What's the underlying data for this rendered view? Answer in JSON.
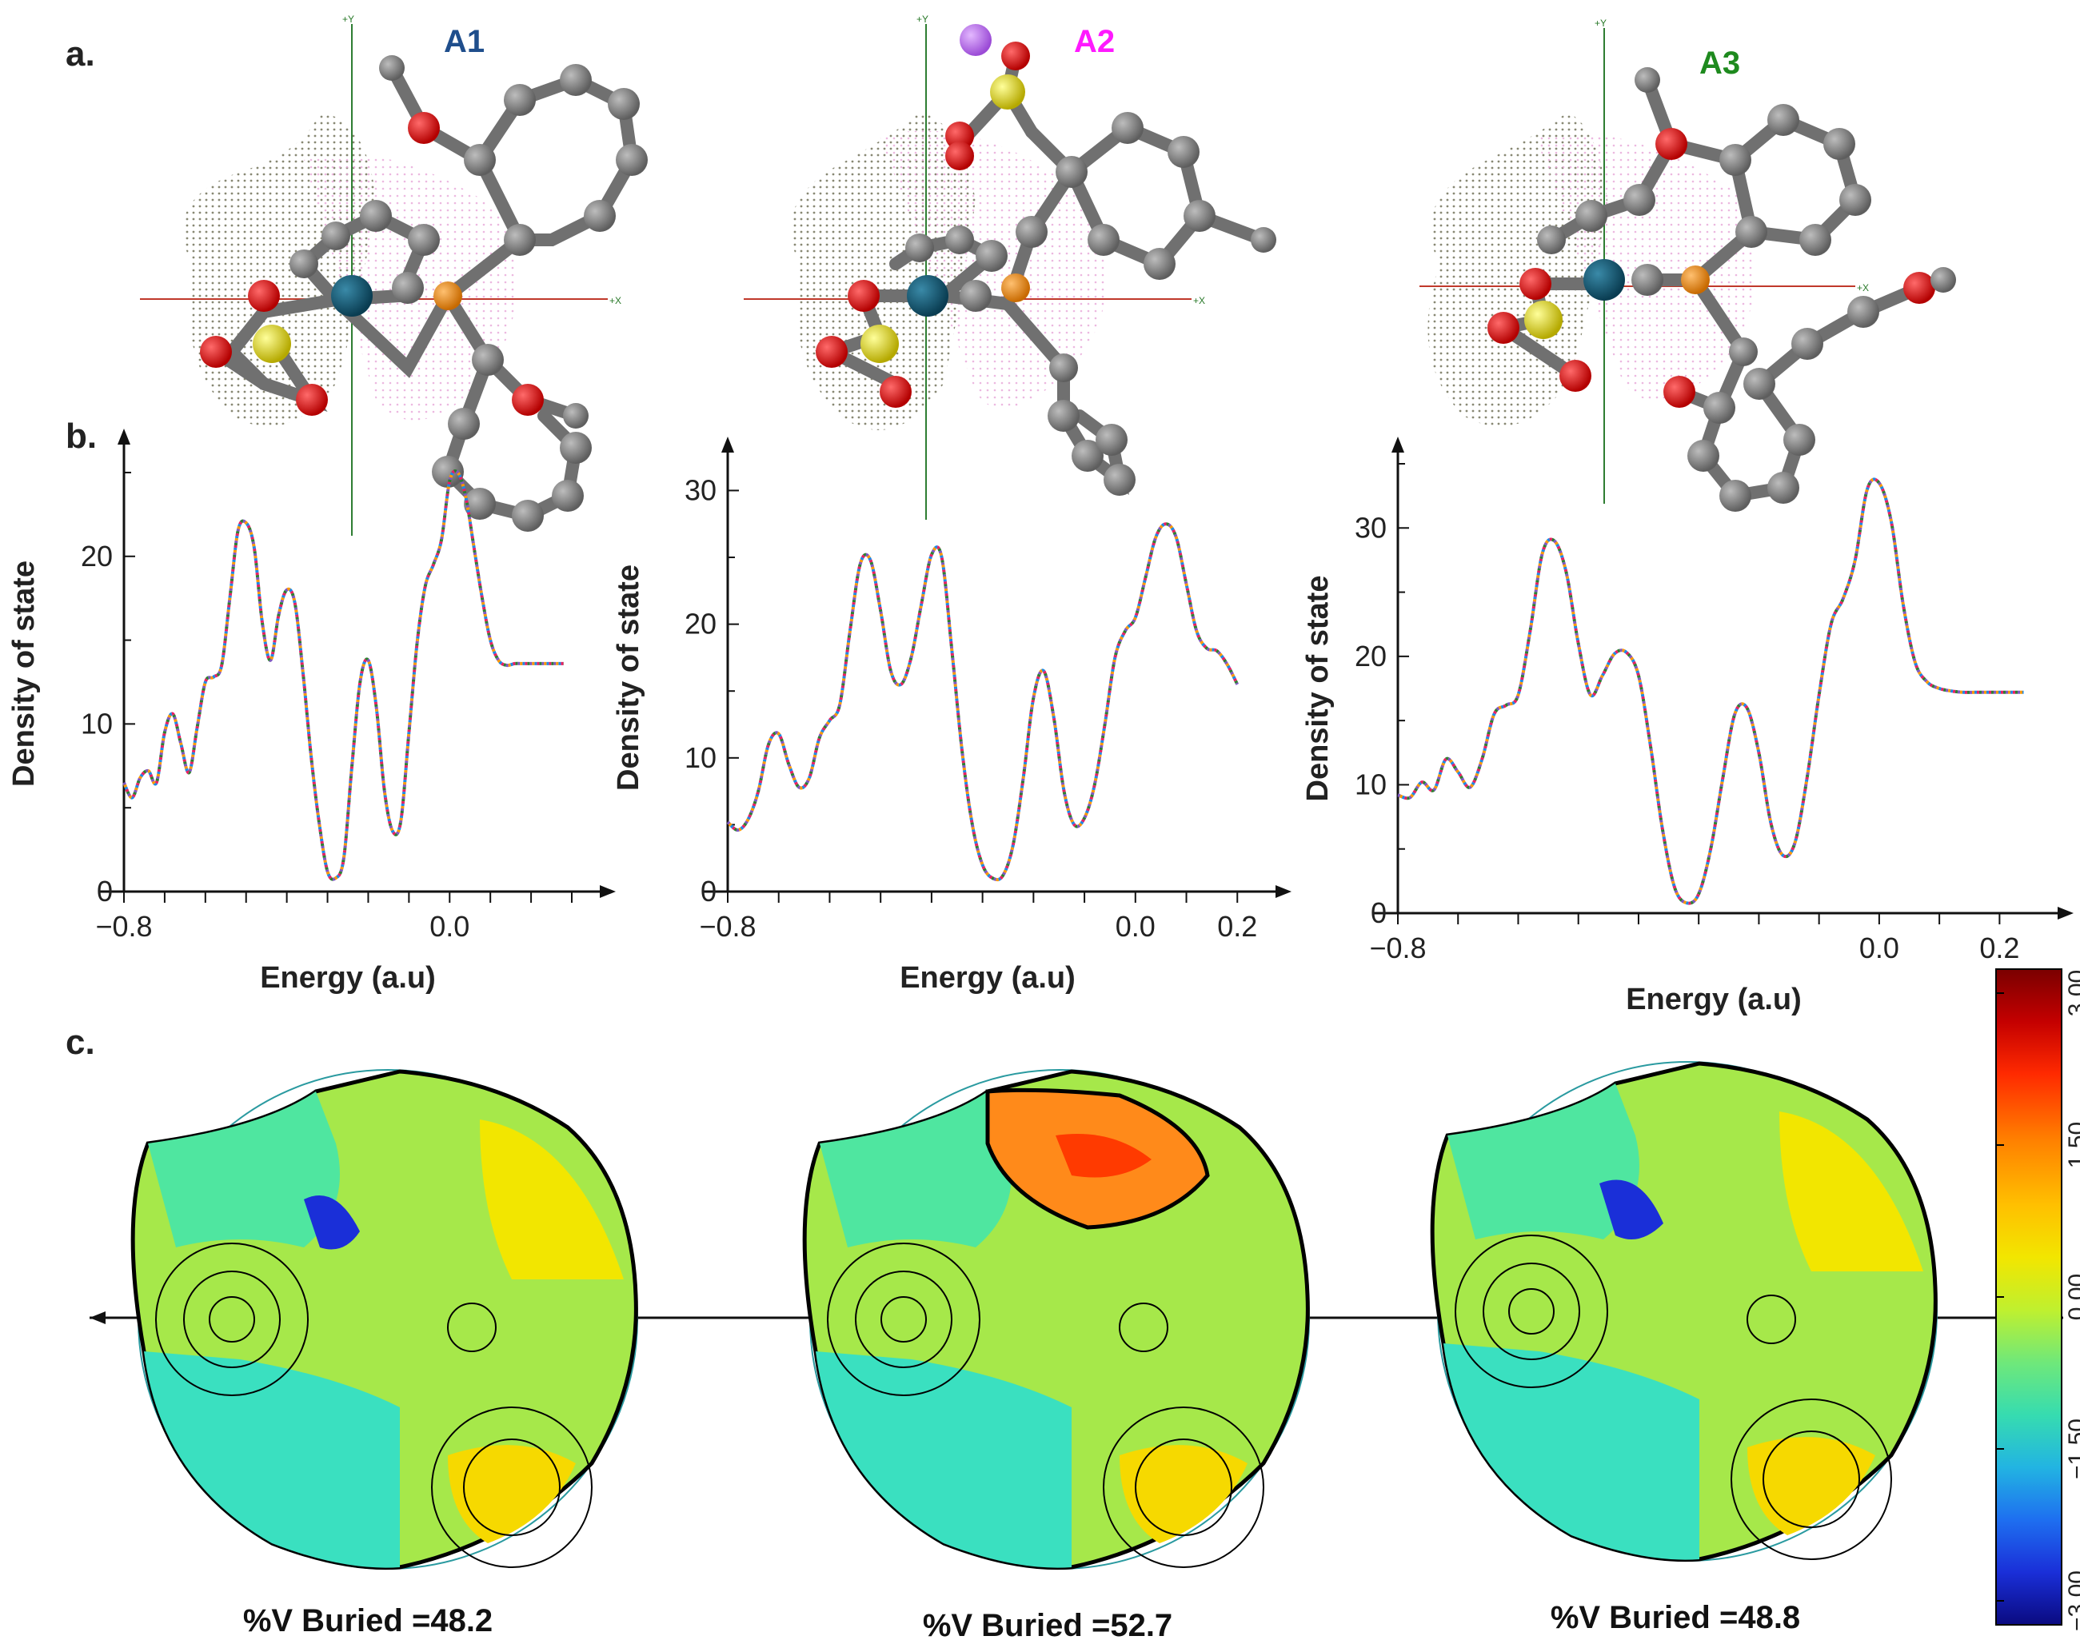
{
  "panel_labels": {
    "a": "a.",
    "b": "b.",
    "c": "c."
  },
  "molecules": [
    {
      "title": "A1",
      "color": "#1f4e8c",
      "x_axis": "+X",
      "y_axis": "+Y"
    },
    {
      "title": "A2",
      "color": "#ff19ff",
      "x_axis": "+X",
      "y_axis": "+Y"
    },
    {
      "title": "A3",
      "color": "#1e8a1e",
      "x_axis": "+X",
      "y_axis": "+Y"
    }
  ],
  "chart_data": [
    {
      "type": "line",
      "panel": "b-A1",
      "xlabel": "Energy (a.u)",
      "ylabel": "Density of state",
      "xlim": [
        -0.8,
        0.3
      ],
      "ylim": [
        0,
        26
      ],
      "xticks": [
        "−0.8",
        "0.0"
      ],
      "yticks": [
        "0",
        "10",
        "20"
      ],
      "x": [
        -0.8,
        -0.78,
        -0.76,
        -0.74,
        -0.72,
        -0.7,
        -0.68,
        -0.66,
        -0.64,
        -0.62,
        -0.6,
        -0.58,
        -0.56,
        -0.54,
        -0.52,
        -0.5,
        -0.48,
        -0.46,
        -0.44,
        -0.42,
        -0.4,
        -0.38,
        -0.36,
        -0.34,
        -0.32,
        -0.3,
        -0.28,
        -0.26,
        -0.24,
        -0.22,
        -0.2,
        -0.18,
        -0.16,
        -0.14,
        -0.12,
        -0.1,
        -0.08,
        -0.06,
        -0.04,
        -0.02,
        0.0,
        0.02,
        0.04,
        0.06,
        0.08,
        0.1,
        0.12,
        0.14,
        0.16,
        0.18,
        0.2,
        0.22,
        0.24,
        0.26,
        0.28
      ],
      "series": [
        {
          "values": [
            6.5,
            5.6,
            6.8,
            7.2,
            6.5,
            9.5,
            10.6,
            8.8,
            7.1,
            9.8,
            12.5,
            12.8,
            13.5,
            17.5,
            21.5,
            22.0,
            20.5,
            16.0,
            13.8,
            16.5,
            18.0,
            17.2,
            13.0,
            8.0,
            4.0,
            1.2,
            0.8,
            2.0,
            7.5,
            12.5,
            13.8,
            11.0,
            6.0,
            3.6,
            4.2,
            9.5,
            14.8,
            18.2,
            19.5,
            21.0,
            24.5,
            25.0,
            23.5,
            20.5,
            17.5,
            15.0,
            13.8,
            13.5,
            13.6,
            13.6,
            13.6,
            13.6,
            13.6,
            13.6,
            13.6
          ]
        }
      ]
    },
    {
      "type": "line",
      "panel": "b-A2",
      "xlabel": "Energy (a.u)",
      "ylabel": "Density of state",
      "xlim": [
        -0.8,
        0.22
      ],
      "ylim": [
        0,
        32
      ],
      "xticks": [
        "−0.8",
        "0.0",
        "0.2"
      ],
      "yticks": [
        "0",
        "10",
        "20",
        "30"
      ],
      "x": [
        -0.8,
        -0.78,
        -0.76,
        -0.74,
        -0.72,
        -0.7,
        -0.68,
        -0.66,
        -0.64,
        -0.62,
        -0.6,
        -0.58,
        -0.56,
        -0.54,
        -0.52,
        -0.5,
        -0.48,
        -0.46,
        -0.44,
        -0.42,
        -0.4,
        -0.38,
        -0.36,
        -0.34,
        -0.32,
        -0.3,
        -0.28,
        -0.26,
        -0.24,
        -0.22,
        -0.2,
        -0.18,
        -0.16,
        -0.14,
        -0.12,
        -0.1,
        -0.08,
        -0.06,
        -0.04,
        -0.02,
        0.0,
        0.02,
        0.04,
        0.06,
        0.08,
        0.1,
        0.12,
        0.14,
        0.16,
        0.18,
        0.2
      ],
      "series": [
        {
          "values": [
            5.2,
            4.6,
            5.4,
            7.5,
            11.0,
            11.8,
            9.5,
            7.8,
            8.5,
            11.5,
            12.8,
            14.0,
            19.5,
            24.5,
            24.8,
            21.0,
            16.5,
            15.5,
            17.5,
            21.5,
            25.2,
            25.0,
            18.0,
            10.5,
            5.0,
            2.0,
            1.0,
            1.2,
            3.5,
            8.5,
            14.5,
            16.5,
            13.0,
            7.5,
            5.0,
            5.5,
            8.0,
            12.5,
            17.5,
            19.5,
            20.5,
            23.5,
            26.5,
            27.5,
            26.5,
            23.0,
            19.5,
            18.2,
            18.0,
            17.0,
            15.5
          ]
        }
      ]
    },
    {
      "type": "line",
      "panel": "b-A3",
      "xlabel": "Energy (a.u)",
      "ylabel": "Density of state",
      "xlim": [
        -0.8,
        0.25
      ],
      "ylim": [
        0,
        35
      ],
      "xticks": [
        "−0.8",
        "0.0",
        "0.2"
      ],
      "yticks": [
        "0",
        "10",
        "20",
        "30"
      ],
      "x": [
        -0.8,
        -0.78,
        -0.76,
        -0.74,
        -0.72,
        -0.7,
        -0.68,
        -0.66,
        -0.64,
        -0.62,
        -0.6,
        -0.58,
        -0.56,
        -0.54,
        -0.52,
        -0.5,
        -0.48,
        -0.46,
        -0.44,
        -0.42,
        -0.4,
        -0.38,
        -0.36,
        -0.34,
        -0.32,
        -0.3,
        -0.28,
        -0.26,
        -0.24,
        -0.22,
        -0.2,
        -0.18,
        -0.16,
        -0.14,
        -0.12,
        -0.1,
        -0.08,
        -0.06,
        -0.04,
        -0.02,
        0.0,
        0.02,
        0.04,
        0.06,
        0.08,
        0.1,
        0.12,
        0.14,
        0.16,
        0.18,
        0.2,
        0.22,
        0.24
      ],
      "series": [
        {
          "values": [
            9.2,
            9.0,
            10.2,
            9.6,
            12.0,
            11.0,
            9.8,
            12.0,
            15.5,
            16.2,
            17.0,
            22.0,
            28.0,
            29.0,
            26.5,
            21.0,
            17.0,
            18.5,
            20.2,
            20.3,
            18.5,
            13.0,
            6.5,
            2.0,
            0.8,
            1.5,
            5.0,
            10.5,
            15.5,
            16.0,
            12.5,
            7.0,
            4.5,
            5.5,
            10.5,
            17.0,
            22.5,
            24.5,
            27.5,
            33.0,
            33.5,
            30.5,
            24.0,
            19.5,
            18.0,
            17.5,
            17.3,
            17.2,
            17.2,
            17.2,
            17.2,
            17.2,
            17.2
          ]
        }
      ]
    }
  ],
  "buried": [
    {
      "label": "%V Buried =48.2"
    },
    {
      "label": "%V Buried =52.7"
    },
    {
      "label": "%V Buried =48.8"
    }
  ],
  "colorbar": {
    "ticks": [
      "3.00",
      "1.50",
      "0.00",
      "−1.50",
      "−3.00"
    ],
    "colors": [
      "#7a0000",
      "#c40000",
      "#ff2a00",
      "#ff7a00",
      "#ffb300",
      "#f2e100",
      "#c8ee2a",
      "#8fe860",
      "#4ee698",
      "#2dd5c6",
      "#22a8e6",
      "#1e6bf0",
      "#1a2fd8",
      "#0a0a8a"
    ]
  }
}
